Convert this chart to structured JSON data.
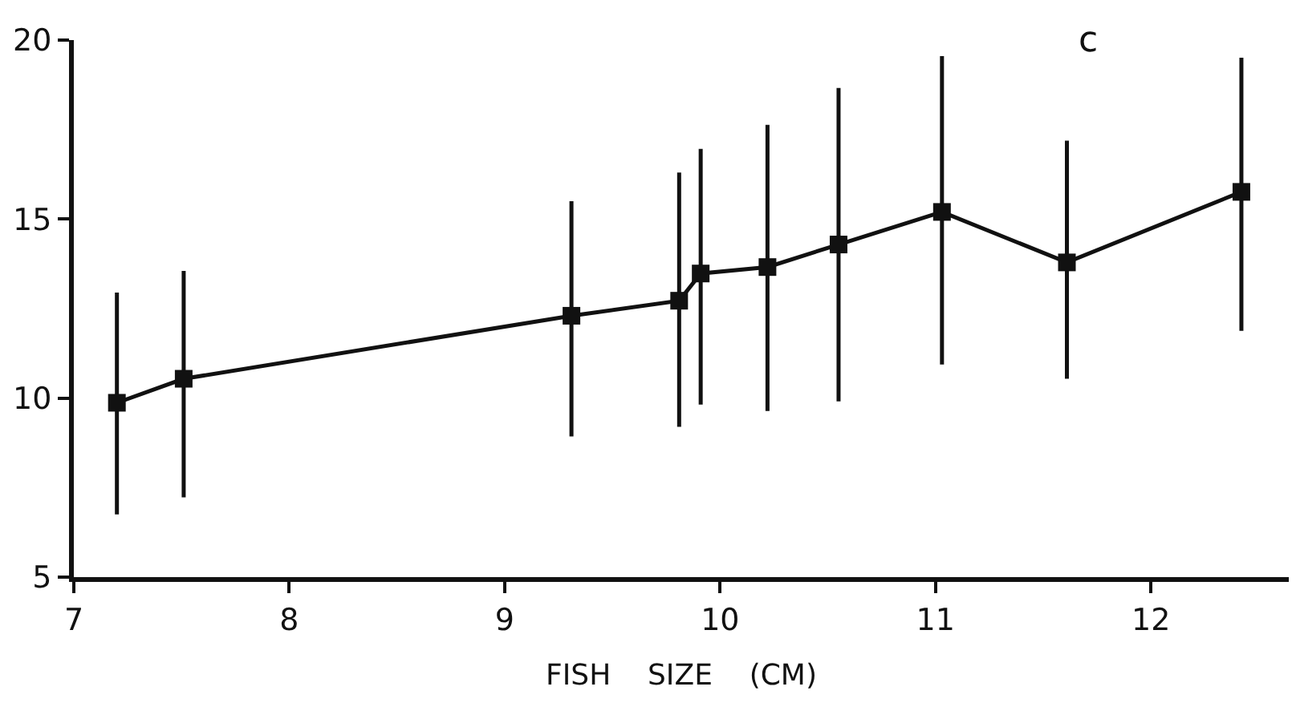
{
  "chart_data": {
    "type": "line",
    "xlabel": "FISH    SIZE    (CM)",
    "annotations": [
      "c"
    ],
    "x": [
      7.2,
      7.51,
      9.31,
      9.81,
      9.91,
      10.22,
      10.55,
      11.03,
      11.61,
      12.42
    ],
    "series": [
      {
        "color": "#111111",
        "values": [
          9.87,
          10.54,
          12.3,
          12.72,
          13.48,
          13.66,
          14.29,
          15.2,
          13.79,
          15.76
        ],
        "errors": [
          [
            6.75,
            12.95
          ],
          [
            7.23,
            13.55
          ],
          [
            8.93,
            15.5
          ],
          [
            9.2,
            16.3
          ],
          [
            9.82,
            16.96
          ],
          [
            9.64,
            17.63
          ],
          [
            9.91,
            18.66
          ],
          [
            10.94,
            19.55
          ],
          [
            10.54,
            17.19
          ],
          [
            11.88,
            19.51
          ]
        ]
      }
    ],
    "xlim": [
      7,
      12.64
    ],
    "xticks": [
      7,
      8,
      9,
      10,
      11,
      12
    ],
    "ylim": [
      5,
      20
    ],
    "yticks": [
      5,
      10,
      15,
      20
    ],
    "marker": "square",
    "line_style": "solid"
  }
}
